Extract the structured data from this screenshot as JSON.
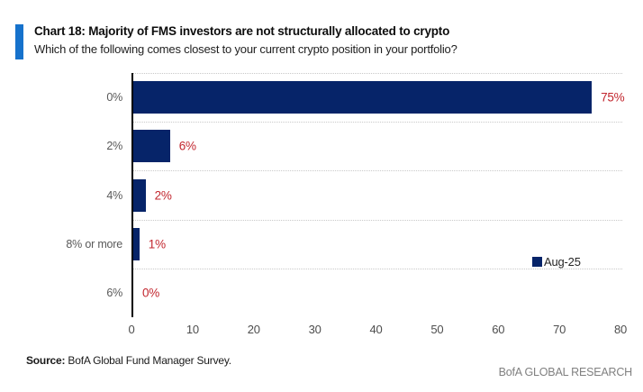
{
  "header": {
    "accent_color": "#1672CC",
    "title": "Chart 18: Majority of FMS investors are not structurally allocated to crypto",
    "subtitle": "Which of the following comes closest to your current crypto position in your portfolio?"
  },
  "chart_data": {
    "type": "bar",
    "orientation": "horizontal",
    "title": "Chart 18: Majority of FMS investors are not structurally allocated to crypto",
    "subtitle": "Which of the following comes closest to your current crypto position in your portfolio?",
    "categories": [
      "0%",
      "2%",
      "4%",
      "8% or more",
      "6%"
    ],
    "series": [
      {
        "name": "Aug-25",
        "values": [
          75,
          6,
          2,
          1,
          0
        ]
      }
    ],
    "data_labels": [
      "75%",
      "6%",
      "2%",
      "1%",
      "0%"
    ],
    "xlabel": "",
    "ylabel": "",
    "xlim": [
      0,
      80
    ],
    "x_ticks": [
      "0",
      "10",
      "20",
      "30",
      "40",
      "50",
      "60",
      "70",
      "80"
    ],
    "grid": "dotted-horizontal-row-boundaries",
    "legend": {
      "label": "Aug-25",
      "position": "middle-right"
    },
    "bar_color": "#062469",
    "data_label_color": "#C2262E",
    "category_label_color": "#595959",
    "axis_color": "#000000"
  },
  "footer": {
    "source_label": "Source:",
    "source_text": " BofA Global Fund Manager Survey.",
    "brand": "BofA GLOBAL RESEARCH"
  }
}
